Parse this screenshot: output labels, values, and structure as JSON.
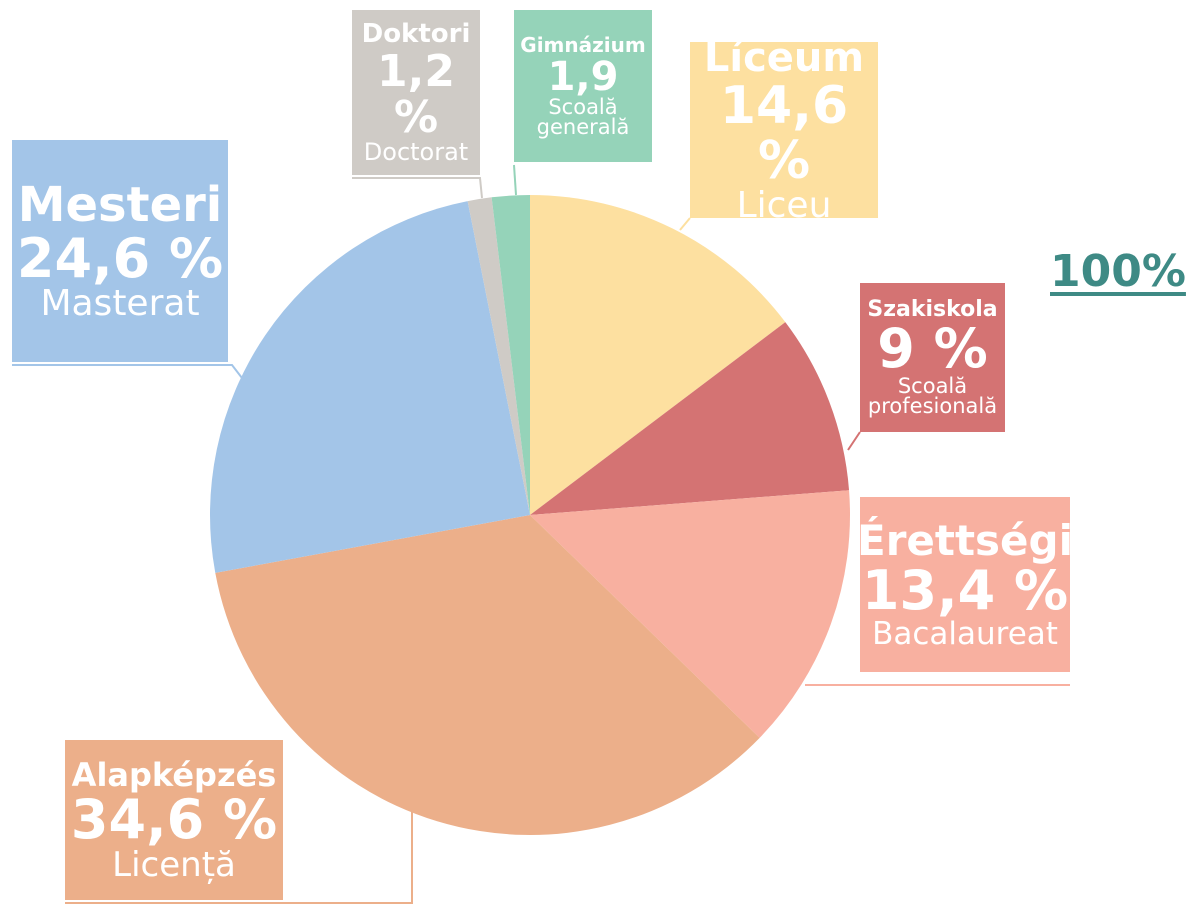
{
  "chart_data": {
    "type": "pie",
    "categories": [
      "Líceum",
      "Szakiskola",
      "Érettségi",
      "Alapképzés",
      "Mesteri",
      "Doktori",
      "Gimnázium"
    ],
    "values": [
      14.6,
      9,
      13.4,
      34.6,
      24.6,
      1.2,
      1.9
    ],
    "value_labels": [
      "14,6 %",
      "9 %",
      "13,4 %",
      "34,6 %",
      "24,6 %",
      "1,2 %",
      "1,9"
    ],
    "sublabels": [
      "Liceu",
      "Scoală profesională",
      "Bacalaureat",
      "Licență",
      "Masterat",
      "Doctorat",
      "Scoală generală"
    ],
    "colors": [
      "#fde0a0",
      "#d47373",
      "#f8b0a0",
      "#ecaf8a",
      "#a3c5e8",
      "#cfcbc6",
      "#95d3b9"
    ],
    "annotation": "100%"
  }
}
